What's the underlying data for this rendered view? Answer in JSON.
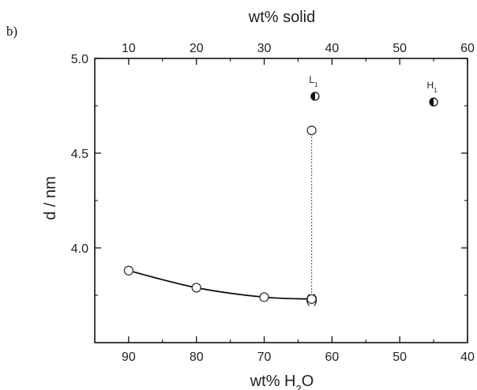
{
  "panel_label": "b)",
  "chart_data": {
    "type": "scatter",
    "xlabel_bottom": "wt% H2O",
    "xlabel_top": "wt% solid",
    "ylabel": "d / nm",
    "xlim_bottom": [
      95,
      40
    ],
    "xlim_top": [
      5,
      60
    ],
    "ylim": [
      3.5,
      5.0
    ],
    "bottom_ticks": [
      "90",
      "80",
      "70",
      "60",
      "50",
      "40"
    ],
    "top_ticks": [
      "10",
      "20",
      "30",
      "40",
      "50",
      "60"
    ],
    "y_ticks": [
      "4.0",
      "4.5",
      "5.0"
    ],
    "grid": false,
    "series": [
      {
        "marker": "open-circle",
        "fit_curve": true,
        "points": [
          {
            "x": 90,
            "y": 3.88
          },
          {
            "x": 80,
            "y": 3.79
          },
          {
            "x": 70,
            "y": 3.74
          },
          {
            "x": 63,
            "y": 3.73,
            "annotation": "( )"
          }
        ]
      },
      {
        "marker": "open-circle",
        "points": [
          {
            "x": 63,
            "y": 4.62
          }
        ]
      },
      {
        "marker": "half-filled-circle",
        "points": [
          {
            "x": 62.5,
            "y": 4.8,
            "label": "L1"
          },
          {
            "x": 45,
            "y": 4.77,
            "label": "H1"
          }
        ]
      }
    ],
    "dotted_line": {
      "x": 63,
      "y_from": 3.73,
      "y_to": 4.62
    }
  }
}
